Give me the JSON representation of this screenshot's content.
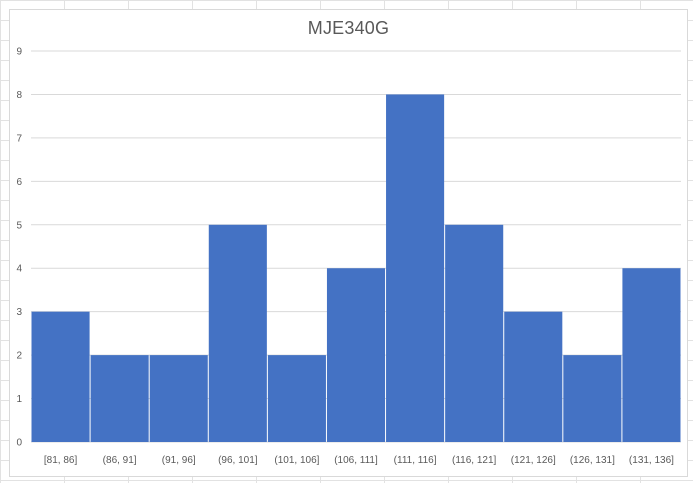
{
  "chart_data": {
    "type": "bar",
    "title": "MJE340G",
    "xlabel": "",
    "ylabel": "",
    "categories": [
      "[81, 86]",
      "(86, 91]",
      "(91, 96]",
      "(96, 101]",
      "(101, 106]",
      "(106, 111]",
      "(111, 116]",
      "(116, 121]",
      "(121, 126]",
      "(126, 131]",
      "(131, 136]"
    ],
    "values": [
      3,
      2,
      2,
      5,
      2,
      4,
      8,
      5,
      3,
      2,
      4
    ],
    "ylim": [
      0,
      9
    ],
    "yticks": [
      0,
      1,
      2,
      3,
      4,
      5,
      6,
      7,
      8,
      9
    ],
    "grid": true,
    "legend": "none",
    "colors": {
      "bar": "#4472c4",
      "gridline": "#d9d9d9",
      "text": "#595959"
    }
  }
}
